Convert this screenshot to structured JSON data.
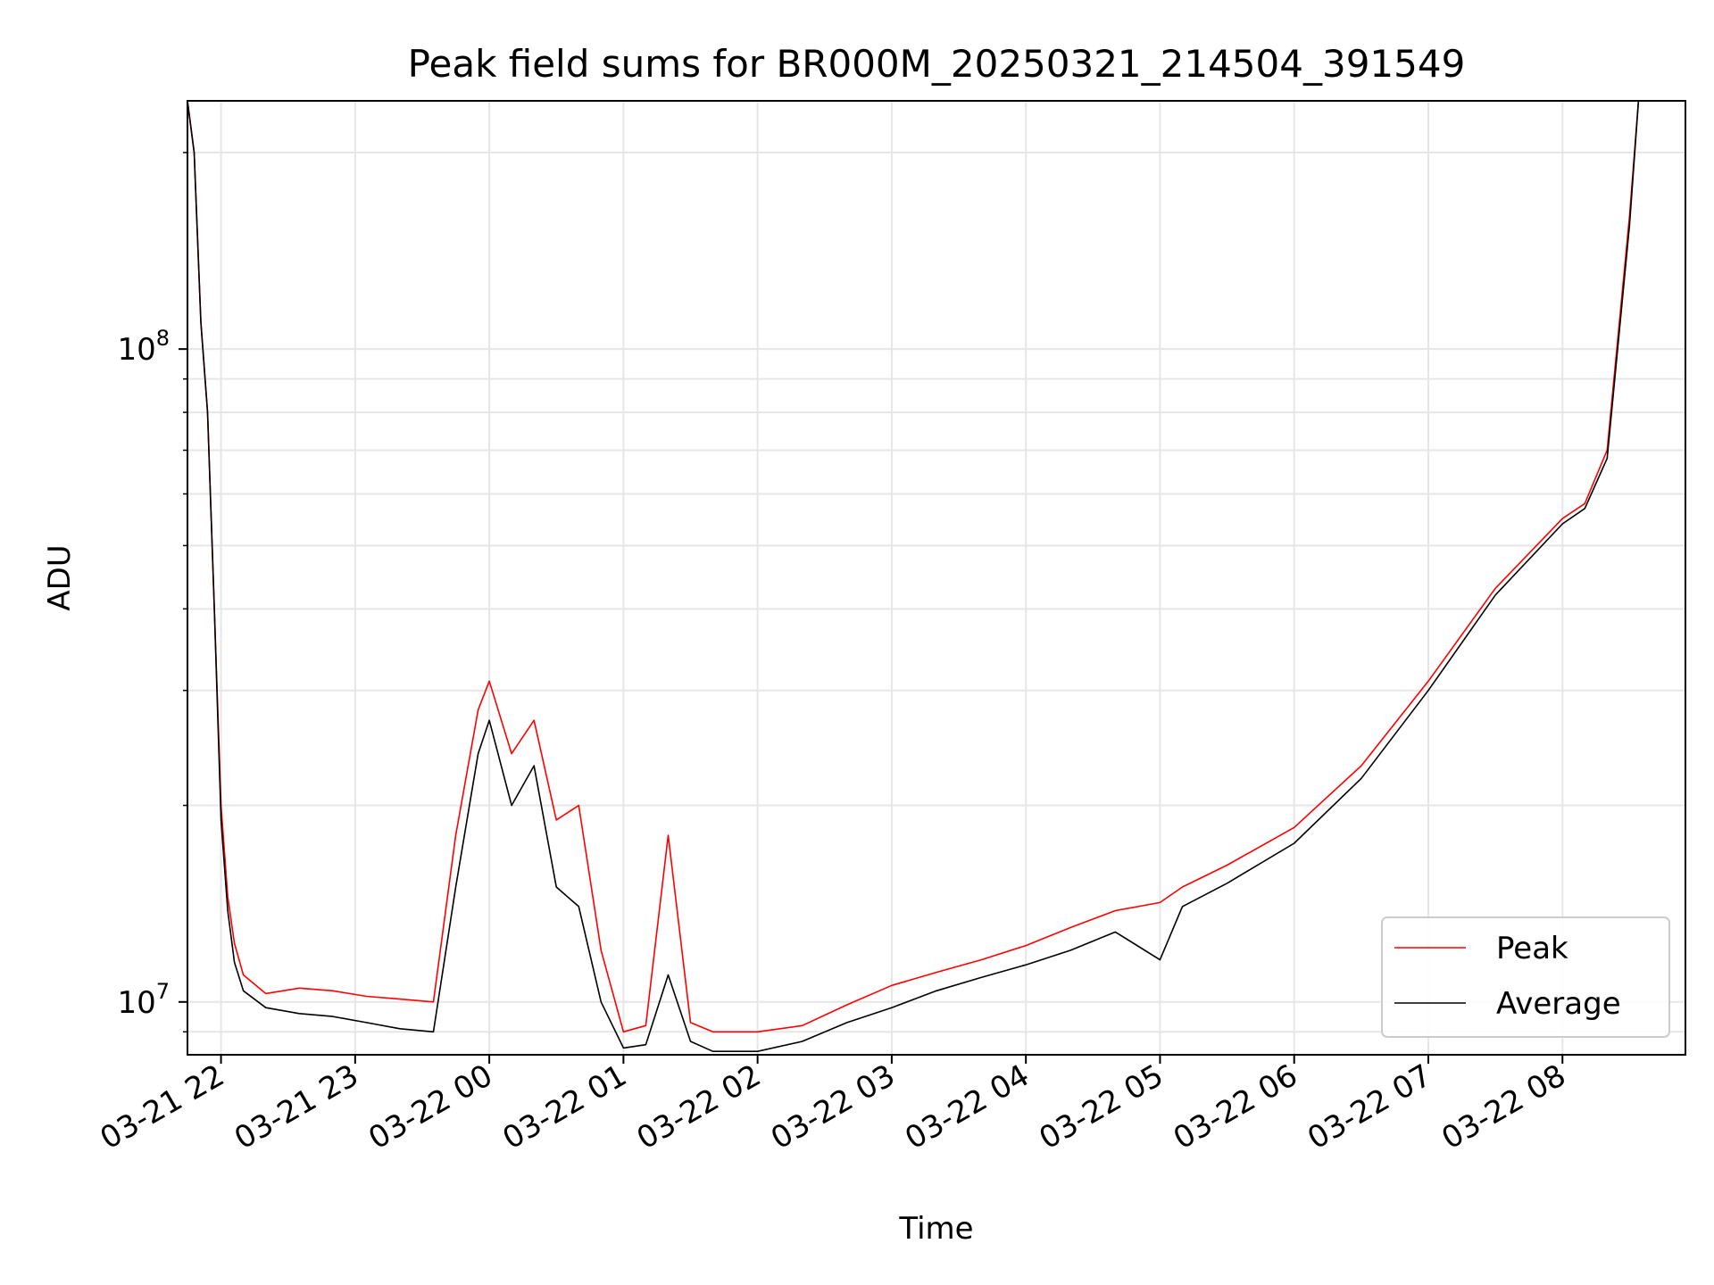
{
  "chart_data": {
    "type": "line",
    "title": "Peak field sums for BR000M_20250321_214504_391549",
    "xlabel": "Time",
    "ylabel": "ADU",
    "yscale": "log",
    "ylim": [
      8300000,
      240000000
    ],
    "xlim": [
      "2025-03-21 21:45",
      "2025-03-22 08:55"
    ],
    "grid": true,
    "legend_position": "lower-right",
    "x_ticks": [
      {
        "t": "2025-03-21 22:00",
        "label": "03-21 22"
      },
      {
        "t": "2025-03-21 23:00",
        "label": "03-21 23"
      },
      {
        "t": "2025-03-22 00:00",
        "label": "03-22 00"
      },
      {
        "t": "2025-03-22 01:00",
        "label": "03-22 01"
      },
      {
        "t": "2025-03-22 02:00",
        "label": "03-22 02"
      },
      {
        "t": "2025-03-22 03:00",
        "label": "03-22 03"
      },
      {
        "t": "2025-03-22 04:00",
        "label": "03-22 04"
      },
      {
        "t": "2025-03-22 05:00",
        "label": "03-22 05"
      },
      {
        "t": "2025-03-22 06:00",
        "label": "03-22 06"
      },
      {
        "t": "2025-03-22 07:00",
        "label": "03-22 07"
      },
      {
        "t": "2025-03-22 08:00",
        "label": "03-22 08"
      }
    ],
    "y_ticks": [
      {
        "value": 10000000,
        "label_base": "10",
        "label_exp": "7"
      },
      {
        "value": 100000000,
        "label_base": "10",
        "label_exp": "8"
      }
    ],
    "series": [
      {
        "name": "Peak",
        "color": "#ff0000",
        "points": [
          [
            "2025-03-21 21:45",
            240000000
          ],
          [
            "2025-03-21 21:48",
            200000000
          ],
          [
            "2025-03-21 21:51",
            110000000
          ],
          [
            "2025-03-21 21:54",
            80000000
          ],
          [
            "2025-03-21 21:57",
            40000000
          ],
          [
            "2025-03-21 22:00",
            20000000
          ],
          [
            "2025-03-21 22:03",
            14500000
          ],
          [
            "2025-03-21 22:06",
            12300000
          ],
          [
            "2025-03-21 22:10",
            11000000
          ],
          [
            "2025-03-21 22:20",
            10300000
          ],
          [
            "2025-03-21 22:35",
            10500000
          ],
          [
            "2025-03-21 22:50",
            10400000
          ],
          [
            "2025-03-21 23:05",
            10200000
          ],
          [
            "2025-03-21 23:20",
            10100000
          ],
          [
            "2025-03-21 23:35",
            10000000
          ],
          [
            "2025-03-21 23:45",
            18000000
          ],
          [
            "2025-03-21 23:55",
            28000000
          ],
          [
            "2025-03-22 00:00",
            31000000
          ],
          [
            "2025-03-22 00:10",
            24000000
          ],
          [
            "2025-03-22 00:20",
            27000000
          ],
          [
            "2025-03-22 00:30",
            19000000
          ],
          [
            "2025-03-22 00:40",
            20000000
          ],
          [
            "2025-03-22 00:50",
            12000000
          ],
          [
            "2025-03-22 01:00",
            9000000
          ],
          [
            "2025-03-22 01:10",
            9200000
          ],
          [
            "2025-03-22 01:20",
            18000000
          ],
          [
            "2025-03-22 01:30",
            9300000
          ],
          [
            "2025-03-22 01:40",
            9000000
          ],
          [
            "2025-03-22 02:00",
            9000000
          ],
          [
            "2025-03-22 02:20",
            9200000
          ],
          [
            "2025-03-22 02:40",
            9900000
          ],
          [
            "2025-03-22 03:00",
            10600000
          ],
          [
            "2025-03-22 03:20",
            11100000
          ],
          [
            "2025-03-22 03:40",
            11600000
          ],
          [
            "2025-03-22 04:00",
            12200000
          ],
          [
            "2025-03-22 04:20",
            13000000
          ],
          [
            "2025-03-22 04:40",
            13800000
          ],
          [
            "2025-03-22 05:00",
            14200000
          ],
          [
            "2025-03-22 05:10",
            15000000
          ],
          [
            "2025-03-22 05:30",
            16200000
          ],
          [
            "2025-03-22 06:00",
            18500000
          ],
          [
            "2025-03-22 06:30",
            23000000
          ],
          [
            "2025-03-22 07:00",
            31000000
          ],
          [
            "2025-03-22 07:30",
            43000000
          ],
          [
            "2025-03-22 08:00",
            55000000
          ],
          [
            "2025-03-22 08:10",
            58000000
          ],
          [
            "2025-03-22 08:20",
            70000000
          ],
          [
            "2025-03-22 08:30",
            160000000
          ],
          [
            "2025-03-22 08:34",
            240000000
          ]
        ]
      },
      {
        "name": "Average",
        "color": "#000000",
        "points": [
          [
            "2025-03-21 21:45",
            240000000
          ],
          [
            "2025-03-21 21:48",
            200000000
          ],
          [
            "2025-03-21 21:51",
            110000000
          ],
          [
            "2025-03-21 21:54",
            80000000
          ],
          [
            "2025-03-21 21:57",
            40000000
          ],
          [
            "2025-03-21 22:00",
            19000000
          ],
          [
            "2025-03-21 22:03",
            13800000
          ],
          [
            "2025-03-21 22:06",
            11500000
          ],
          [
            "2025-03-21 22:10",
            10400000
          ],
          [
            "2025-03-21 22:20",
            9800000
          ],
          [
            "2025-03-21 22:35",
            9600000
          ],
          [
            "2025-03-21 22:50",
            9500000
          ],
          [
            "2025-03-21 23:05",
            9300000
          ],
          [
            "2025-03-21 23:20",
            9100000
          ],
          [
            "2025-03-21 23:35",
            9000000
          ],
          [
            "2025-03-21 23:45",
            15000000
          ],
          [
            "2025-03-21 23:55",
            24000000
          ],
          [
            "2025-03-22 00:00",
            27000000
          ],
          [
            "2025-03-22 00:10",
            20000000
          ],
          [
            "2025-03-22 00:20",
            23000000
          ],
          [
            "2025-03-22 00:30",
            15000000
          ],
          [
            "2025-03-22 00:40",
            14000000
          ],
          [
            "2025-03-22 00:50",
            10000000
          ],
          [
            "2025-03-22 01:00",
            8500000
          ],
          [
            "2025-03-22 01:10",
            8600000
          ],
          [
            "2025-03-22 01:20",
            11000000
          ],
          [
            "2025-03-22 01:30",
            8700000
          ],
          [
            "2025-03-22 01:40",
            8400000
          ],
          [
            "2025-03-22 02:00",
            8400000
          ],
          [
            "2025-03-22 02:20",
            8700000
          ],
          [
            "2025-03-22 02:40",
            9300000
          ],
          [
            "2025-03-22 03:00",
            9800000
          ],
          [
            "2025-03-22 03:20",
            10400000
          ],
          [
            "2025-03-22 03:40",
            10900000
          ],
          [
            "2025-03-22 04:00",
            11400000
          ],
          [
            "2025-03-22 04:20",
            12000000
          ],
          [
            "2025-03-22 04:40",
            12800000
          ],
          [
            "2025-03-22 05:00",
            11600000
          ],
          [
            "2025-03-22 05:10",
            14000000
          ],
          [
            "2025-03-22 05:30",
            15200000
          ],
          [
            "2025-03-22 06:00",
            17500000
          ],
          [
            "2025-03-22 06:30",
            22000000
          ],
          [
            "2025-03-22 07:00",
            30000000
          ],
          [
            "2025-03-22 07:30",
            42000000
          ],
          [
            "2025-03-22 08:00",
            54000000
          ],
          [
            "2025-03-22 08:10",
            57000000
          ],
          [
            "2025-03-22 08:20",
            68000000
          ],
          [
            "2025-03-22 08:30",
            155000000
          ],
          [
            "2025-03-22 08:34",
            240000000
          ]
        ]
      }
    ]
  }
}
